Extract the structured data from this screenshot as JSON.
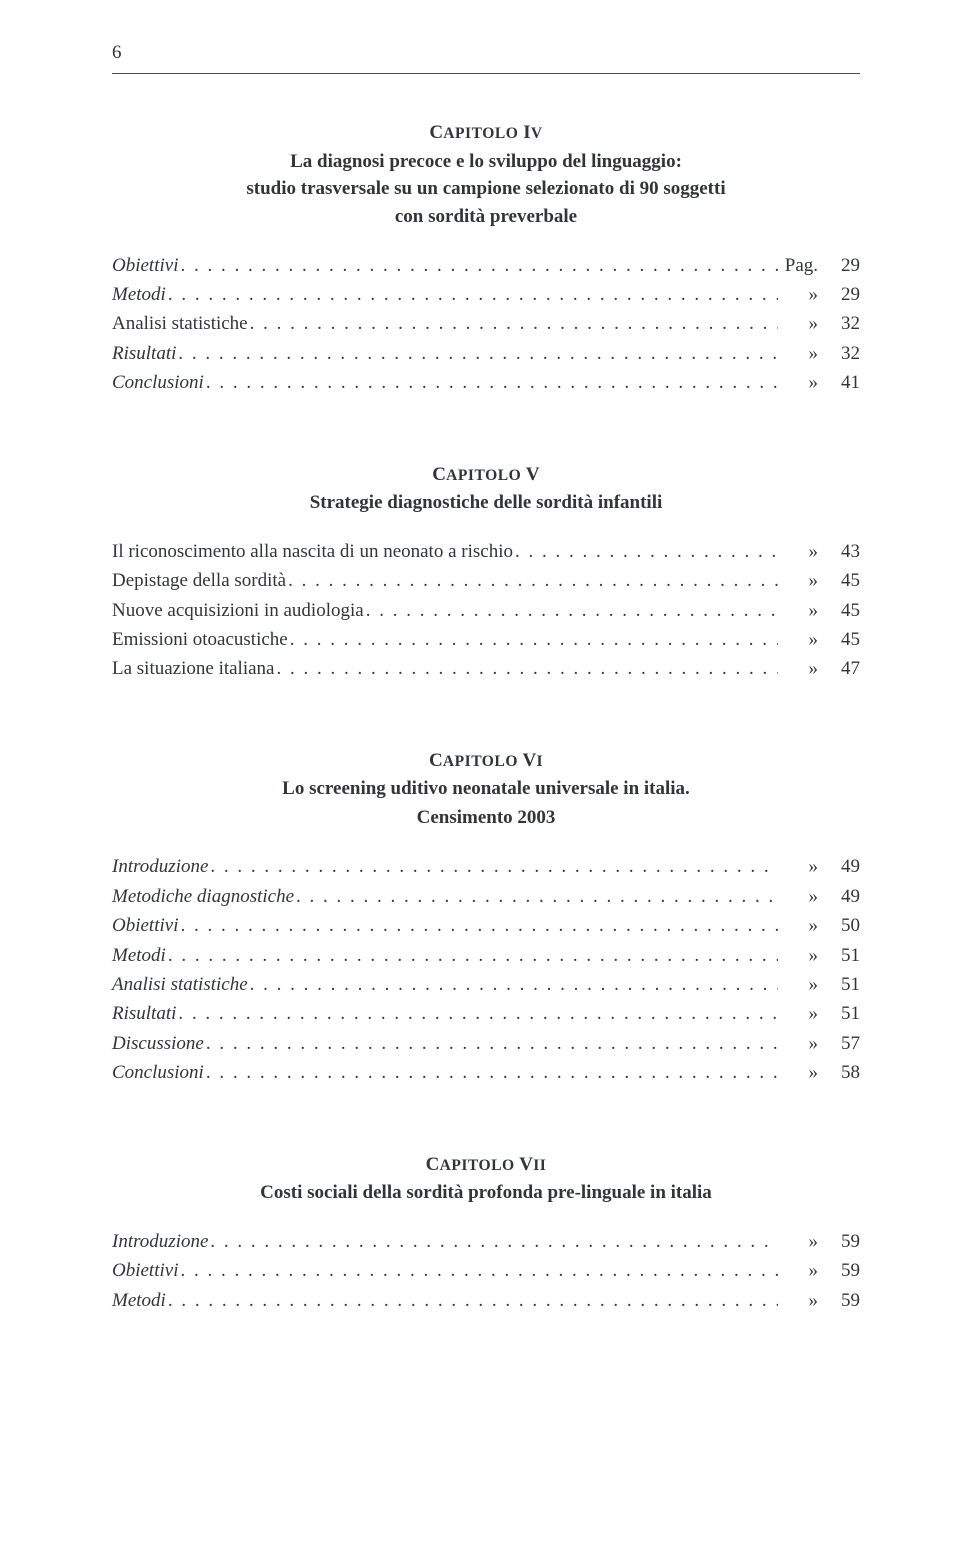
{
  "pageNumber": "6",
  "chapters": [
    {
      "label": "CAPITOLO IV",
      "titleLines": [
        "La diagnosi precoce e lo sviluppo del linguaggio:",
        "studio trasversale su un campione selezionato di 90 soggetti",
        "con sordità preverbale"
      ],
      "subtitle": "",
      "entries": [
        {
          "label": "Obiettivi",
          "italic": true,
          "sym": "Pag.",
          "page": "29"
        },
        {
          "label": "Metodi",
          "italic": true,
          "sym": "»",
          "page": "29"
        },
        {
          "label": "Analisi statistiche",
          "italic": false,
          "sym": "»",
          "page": "32"
        },
        {
          "label": "Risultati",
          "italic": true,
          "sym": "»",
          "page": "32"
        },
        {
          "label": "Conclusioni",
          "italic": true,
          "sym": "»",
          "page": "41"
        }
      ]
    },
    {
      "label": "CAPITOLO V",
      "titleLines": [
        "Strategie diagnostiche delle sordità infantili"
      ],
      "subtitle": "",
      "entries": [
        {
          "label": "Il riconoscimento alla nascita di un neonato a rischio",
          "italic": false,
          "sym": "»",
          "page": "43"
        },
        {
          "label": "Depistage della sordità",
          "italic": false,
          "sym": "»",
          "page": "45"
        },
        {
          "label": "Nuove acquisizioni in audiologia",
          "italic": false,
          "sym": "»",
          "page": "45"
        },
        {
          "label": "Emissioni otoacustiche",
          "italic": false,
          "sym": "»",
          "page": "45"
        },
        {
          "label": "La situazione italiana",
          "italic": false,
          "sym": "»",
          "page": "47"
        }
      ]
    },
    {
      "label": "CAPITOLO VI",
      "titleLines": [
        "Lo screening uditivo neonatale universale in italia."
      ],
      "subtitle": "Censimento 2003",
      "entries": [
        {
          "label": "Introduzione",
          "italic": true,
          "sym": "»",
          "page": "49"
        },
        {
          "label": "Metodiche diagnostiche",
          "italic": true,
          "sym": "»",
          "page": "49"
        },
        {
          "label": "Obiettivi",
          "italic": true,
          "sym": "»",
          "page": "50"
        },
        {
          "label": "Metodi",
          "italic": true,
          "sym": "»",
          "page": "51"
        },
        {
          "label": "Analisi statistiche",
          "italic": true,
          "sym": "»",
          "page": "51"
        },
        {
          "label": "Risultati",
          "italic": true,
          "sym": "»",
          "page": "51"
        },
        {
          "label": "Discussione",
          "italic": true,
          "sym": "»",
          "page": "57"
        },
        {
          "label": "Conclusioni",
          "italic": true,
          "sym": "»",
          "page": "58"
        }
      ]
    },
    {
      "label": "CAPITOLO VII",
      "titleLines": [
        "Costi sociali della sordità profonda pre-linguale in italia"
      ],
      "subtitle": "",
      "entries": [
        {
          "label": "Introduzione",
          "italic": true,
          "sym": "»",
          "page": "59"
        },
        {
          "label": "Obiettivi",
          "italic": true,
          "sym": "»",
          "page": "59"
        },
        {
          "label": "Metodi",
          "italic": true,
          "sym": "»",
          "page": "59"
        }
      ]
    }
  ]
}
